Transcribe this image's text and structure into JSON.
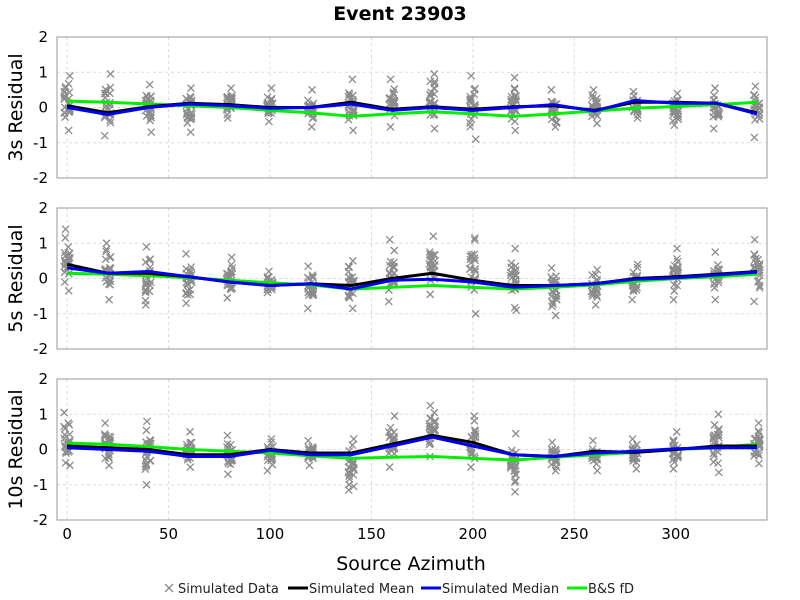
{
  "chart_data": {
    "type": "scatter",
    "title": "Event 23903",
    "xlabel": "Source Azimuth",
    "xlim": [
      -5,
      345
    ],
    "xticks": [
      0,
      50,
      100,
      150,
      200,
      250,
      300
    ],
    "ylim": [
      -2,
      2
    ],
    "yticks": [
      -2,
      -1,
      0,
      1,
      2
    ],
    "grid": true,
    "legend_position": "bottom",
    "legend": [
      "Simulated Data",
      "Simulated Mean",
      "Simulated Median",
      "B&S fD"
    ],
    "colors": {
      "data": "#8c8c8c",
      "mean": "#000000",
      "median": "#0000ee",
      "bs": "#00ee00",
      "frame": "#999999",
      "grid": "#dcdcdc"
    },
    "azimuths": [
      0,
      20,
      40,
      60,
      80,
      100,
      120,
      140,
      160,
      180,
      200,
      220,
      240,
      260,
      280,
      300,
      320,
      340
    ],
    "panels": [
      {
        "ylabel": "3s Residual",
        "mean": [
          0.05,
          -0.15,
          0.02,
          0.12,
          0.08,
          0.0,
          0.0,
          0.15,
          -0.05,
          0.02,
          -0.05,
          0.02,
          0.05,
          -0.08,
          0.15,
          0.15,
          0.12,
          -0.15
        ],
        "median": [
          0.0,
          -0.2,
          0.0,
          0.1,
          0.05,
          -0.02,
          0.0,
          0.1,
          -0.08,
          0.0,
          -0.08,
          0.0,
          0.08,
          -0.1,
          0.2,
          0.12,
          0.12,
          -0.18
        ],
        "bs": [
          0.18,
          0.15,
          0.1,
          0.05,
          0.0,
          -0.08,
          -0.15,
          -0.25,
          -0.18,
          -0.12,
          -0.18,
          -0.25,
          -0.18,
          -0.1,
          -0.02,
          0.03,
          0.08,
          0.15
        ],
        "data_range": [
          [
            -0.65,
            0.9
          ],
          [
            -0.8,
            0.95
          ],
          [
            -0.7,
            0.65
          ],
          [
            -0.7,
            0.55
          ],
          [
            -0.3,
            0.55
          ],
          [
            -0.4,
            0.55
          ],
          [
            -0.55,
            0.5
          ],
          [
            -0.65,
            0.8
          ],
          [
            -0.55,
            0.8
          ],
          [
            -0.6,
            0.95
          ],
          [
            -0.9,
            0.9
          ],
          [
            -0.65,
            0.85
          ],
          [
            -0.55,
            0.5
          ],
          [
            -0.45,
            0.5
          ],
          [
            -0.3,
            0.45
          ],
          [
            -0.5,
            0.4
          ],
          [
            -0.6,
            0.55
          ],
          [
            -0.85,
            0.6
          ]
        ]
      },
      {
        "ylabel": "5s Residual",
        "mean": [
          0.4,
          0.15,
          0.15,
          0.05,
          -0.1,
          -0.2,
          -0.15,
          -0.2,
          0.0,
          0.15,
          -0.05,
          -0.2,
          -0.2,
          -0.15,
          0.0,
          0.05,
          0.12,
          0.2
        ],
        "median": [
          0.3,
          0.15,
          0.2,
          0.05,
          -0.1,
          -0.2,
          -0.15,
          -0.3,
          -0.05,
          -0.02,
          -0.1,
          -0.25,
          -0.2,
          -0.15,
          -0.02,
          0.02,
          0.1,
          0.18
        ],
        "bs": [
          0.15,
          0.12,
          0.08,
          0.02,
          -0.05,
          -0.12,
          -0.18,
          -0.3,
          -0.25,
          -0.2,
          -0.25,
          -0.3,
          -0.25,
          -0.18,
          -0.08,
          0.0,
          0.05,
          0.12
        ],
        "data_range": [
          [
            -0.35,
            1.4
          ],
          [
            -0.6,
            1.0
          ],
          [
            -0.75,
            0.9
          ],
          [
            -0.7,
            0.7
          ],
          [
            -0.55,
            0.6
          ],
          [
            -0.4,
            0.2
          ],
          [
            -0.85,
            0.35
          ],
          [
            -0.85,
            0.5
          ],
          [
            -0.65,
            1.1
          ],
          [
            -0.45,
            1.2
          ],
          [
            -1.0,
            1.15
          ],
          [
            -0.9,
            0.85
          ],
          [
            -1.05,
            0.3
          ],
          [
            -0.75,
            0.25
          ],
          [
            -0.6,
            0.4
          ],
          [
            -0.6,
            0.85
          ],
          [
            -0.6,
            0.75
          ],
          [
            -0.65,
            1.1
          ]
        ]
      },
      {
        "ylabel": "10s Residual",
        "mean": [
          0.1,
          0.05,
          0.0,
          -0.15,
          -0.15,
          0.0,
          -0.1,
          -0.1,
          0.15,
          0.4,
          0.2,
          -0.15,
          -0.2,
          -0.05,
          -0.08,
          0.0,
          0.1,
          0.1
        ],
        "median": [
          0.05,
          0.0,
          -0.05,
          -0.2,
          -0.2,
          -0.02,
          -0.15,
          -0.15,
          0.1,
          0.35,
          0.1,
          -0.15,
          -0.2,
          -0.1,
          -0.05,
          0.02,
          0.05,
          0.05
        ],
        "bs": [
          0.18,
          0.15,
          0.08,
          0.0,
          -0.05,
          -0.1,
          -0.18,
          -0.25,
          -0.22,
          -0.2,
          -0.25,
          -0.3,
          -0.22,
          -0.15,
          -0.08,
          0.0,
          0.05,
          0.15
        ],
        "data_range": [
          [
            -0.45,
            1.05
          ],
          [
            -0.45,
            0.75
          ],
          [
            -1.0,
            0.8
          ],
          [
            -0.5,
            0.5
          ],
          [
            -0.7,
            0.4
          ],
          [
            -0.6,
            0.3
          ],
          [
            -0.45,
            0.25
          ],
          [
            -1.15,
            0.3
          ],
          [
            -0.5,
            0.95
          ],
          [
            -0.2,
            1.25
          ],
          [
            -0.5,
            0.95
          ],
          [
            -1.2,
            0.45
          ],
          [
            -0.6,
            0.2
          ],
          [
            -0.6,
            0.25
          ],
          [
            -0.55,
            0.3
          ],
          [
            -0.55,
            0.5
          ],
          [
            -0.65,
            1.0
          ],
          [
            -0.4,
            0.75
          ]
        ]
      }
    ]
  }
}
